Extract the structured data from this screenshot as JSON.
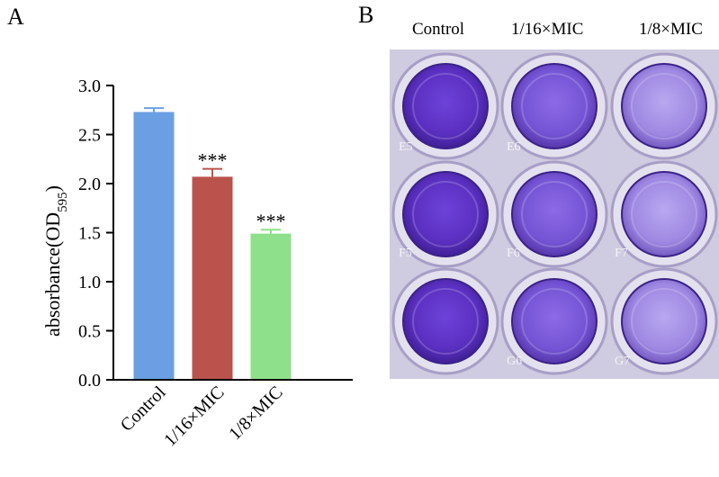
{
  "panels": {
    "a_label": "A",
    "b_label": "B"
  },
  "chart_data": {
    "type": "bar",
    "categories": [
      "Control",
      "1/16×MIC",
      "1/8×MIC"
    ],
    "values": [
      2.73,
      2.07,
      1.49
    ],
    "errors": [
      0.04,
      0.08,
      0.04
    ],
    "significance": [
      "",
      "***",
      "***"
    ],
    "colors": [
      "#6a9fe3",
      "#b9534b",
      "#8fe08a"
    ],
    "ylabel_main": "absorbance(OD",
    "ylabel_sub": "595",
    "ylabel_close": ")",
    "ylim": [
      0.0,
      3.0
    ],
    "yticks": [
      "0.0",
      "0.5",
      "1.0",
      "1.5",
      "2.0",
      "2.5",
      "3.0"
    ],
    "grid": false
  },
  "plate_photo": {
    "column_labels": [
      "Control",
      "1/16×MIC",
      "1/8×MIC"
    ],
    "well_labels": [
      "E5",
      "E6",
      "F5",
      "F6",
      "F7",
      "G6",
      "G7"
    ],
    "stain_color": "#6a3fc0"
  }
}
